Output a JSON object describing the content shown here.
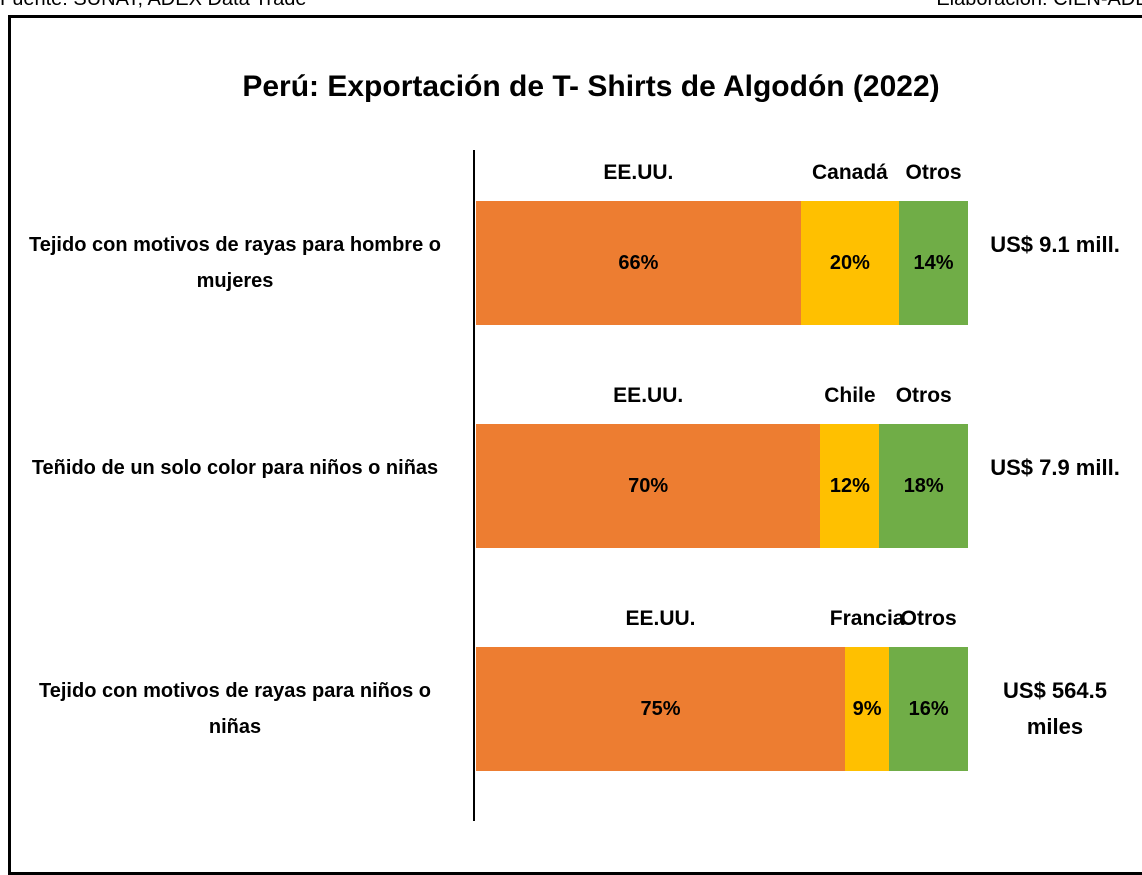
{
  "chart_data": {
    "type": "stacked-bar",
    "source": "Fuente: SUNAT, ADEX Data Trade",
    "credit": "Elaboración: CIEN-ADEX",
    "title": "Perú: Exportación de T- Shirts de Algodón (2022)",
    "categories": [
      "Tejido con motivos de rayas para hombre o mujeres",
      "Teñido de un solo color para niños o niñas",
      "Tejido con motivos de rayas para niños o niñas"
    ],
    "xlim": [
      0,
      100
    ],
    "rows": [
      {
        "names": [
          "EE.UU.",
          "Canadá",
          "Otros"
        ],
        "values": [
          66,
          20,
          14
        ],
        "value_labels": [
          "66%",
          "20%",
          "14%"
        ],
        "colors": [
          "#ed7d31",
          "#ffc000",
          "#70ad47"
        ],
        "total": "US$ 9.1 mill."
      },
      {
        "names": [
          "EE.UU.",
          "Chile",
          "Otros"
        ],
        "values": [
          70,
          12,
          18
        ],
        "value_labels": [
          "70%",
          "12%",
          "18%"
        ],
        "colors": [
          "#ed7d31",
          "#ffc000",
          "#70ad47"
        ],
        "total": "US$ 7.9 mill."
      },
      {
        "names": [
          "EE.UU.",
          "Francia",
          "Otros"
        ],
        "values": [
          75,
          9,
          16
        ],
        "value_labels": [
          "75%",
          "9%",
          "16%"
        ],
        "colors": [
          "#ed7d31",
          "#ffc000",
          "#70ad47"
        ],
        "total": "US$ 564.5 miles"
      }
    ]
  }
}
